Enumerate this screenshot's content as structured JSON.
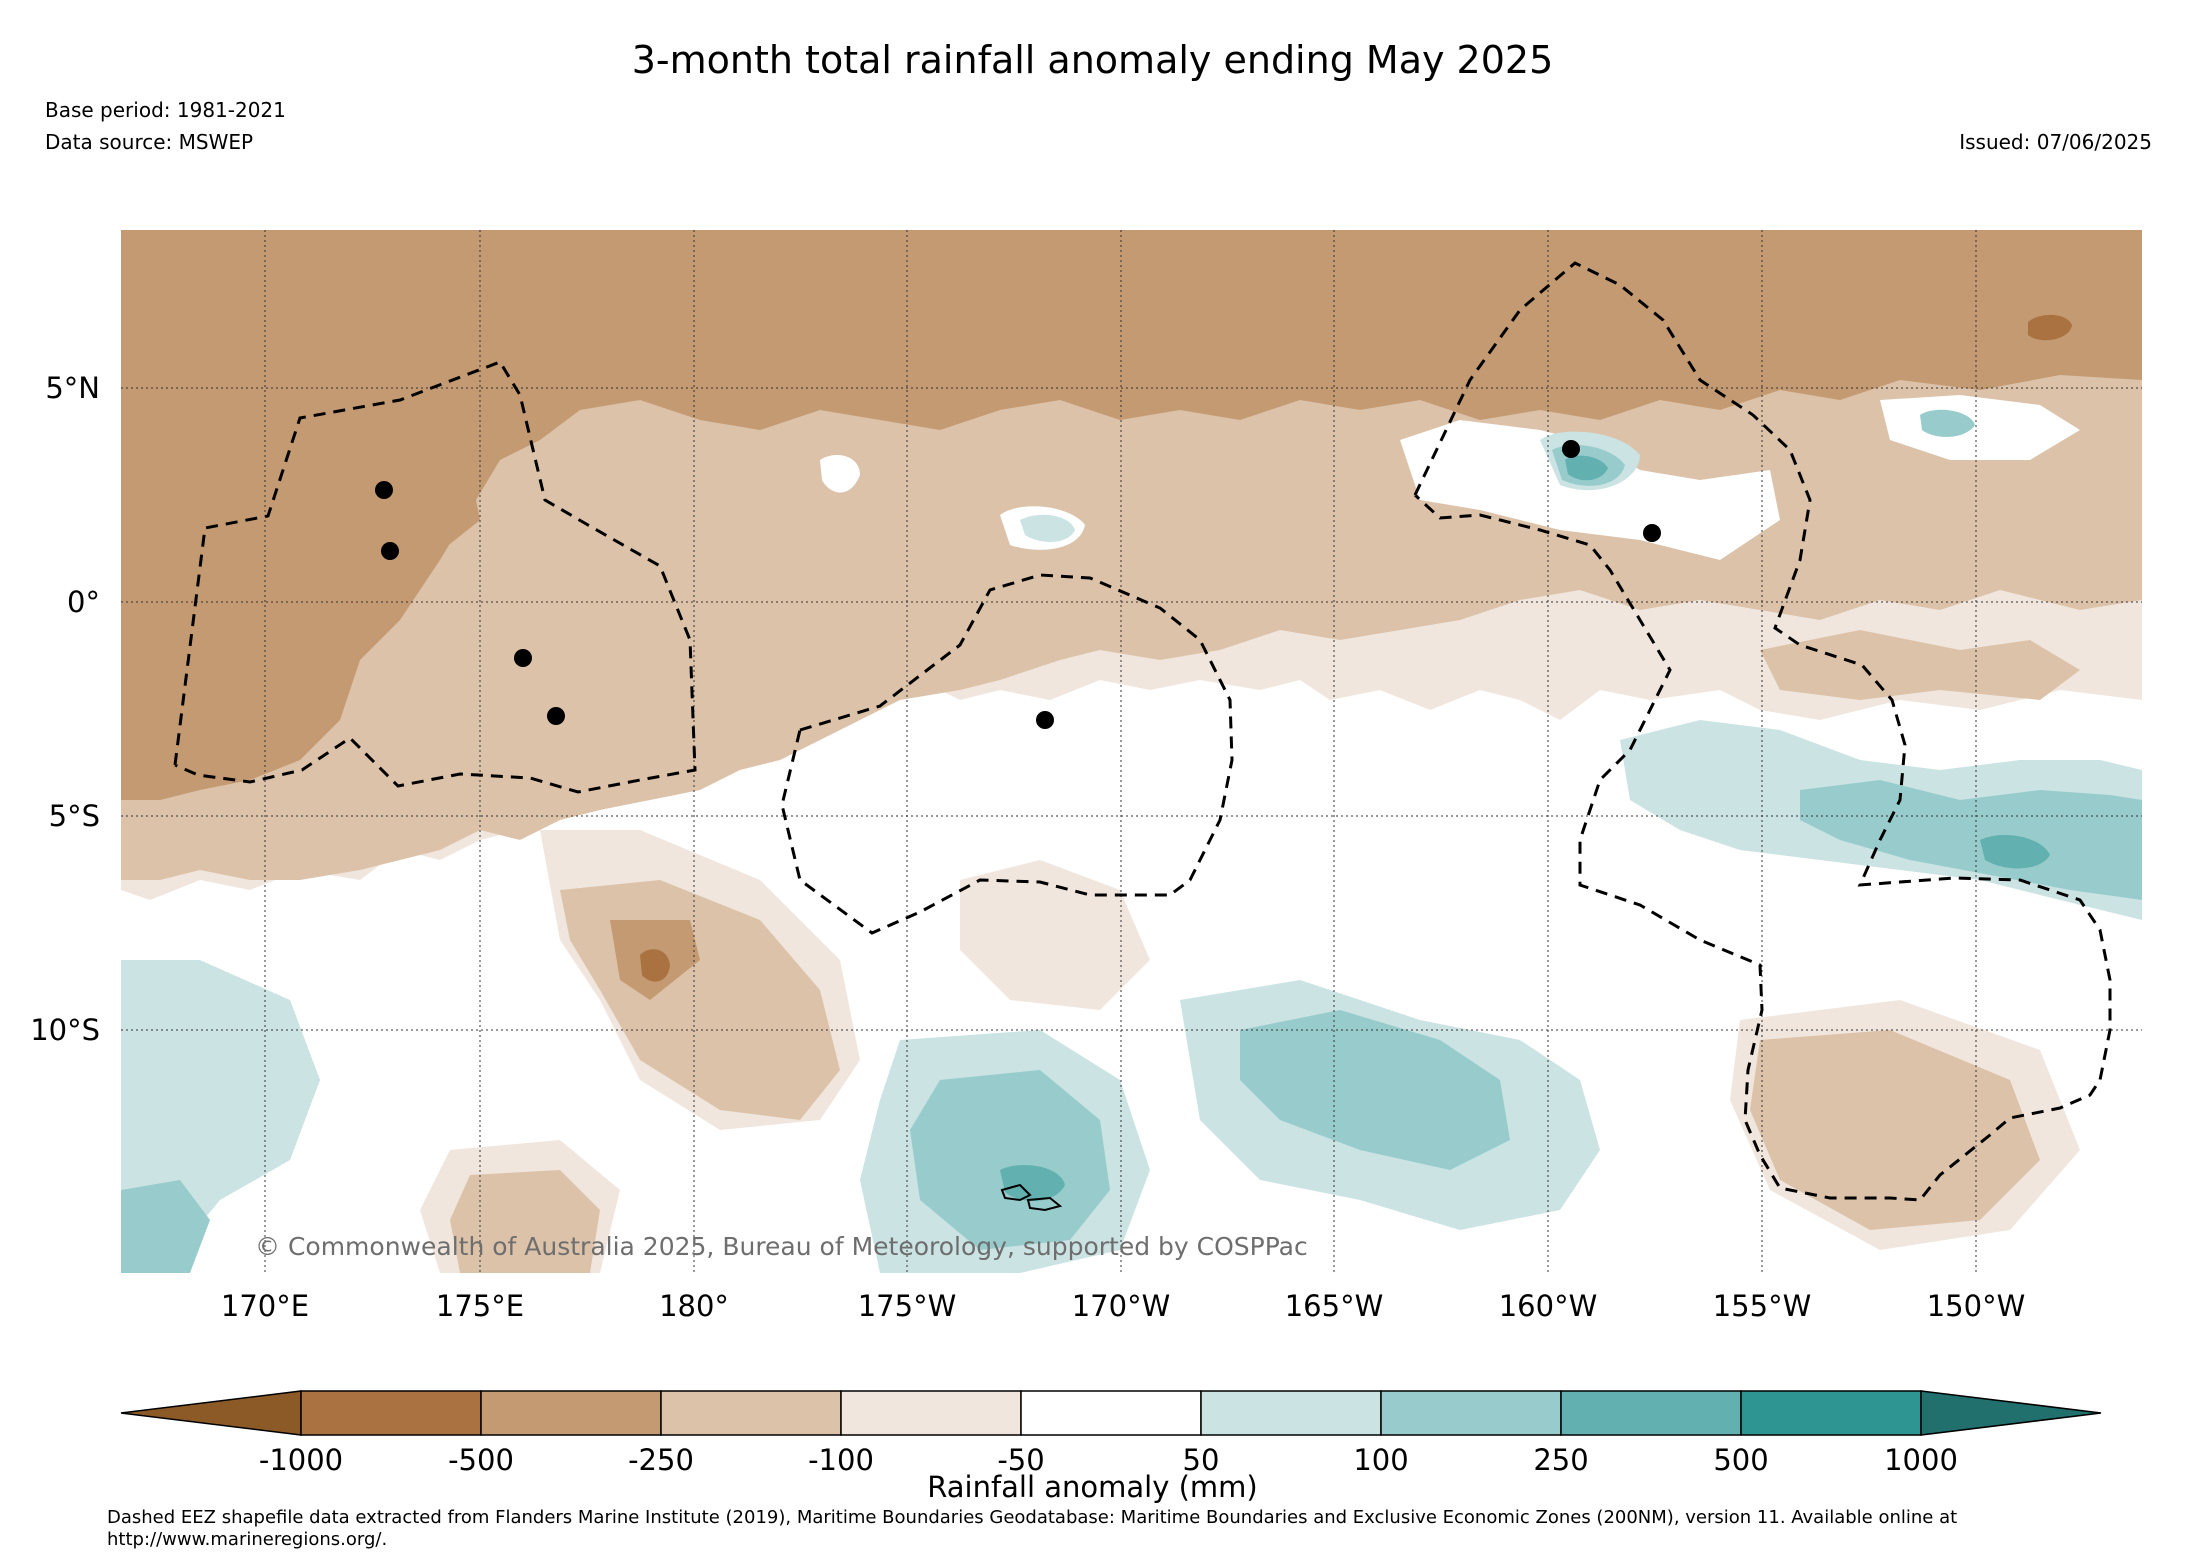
{
  "header": {
    "title": "3-month total rainfall anomaly ending May 2025",
    "base_period": "Base period: 1981-2021",
    "data_source": "Data source: MSWEP",
    "issued": "Issued: 07/06/2025"
  },
  "map": {
    "lat_labels": [
      "5°N",
      "0°",
      "5°S",
      "10°S"
    ],
    "lon_labels": [
      "170°E",
      "175°E",
      "180°",
      "175°W",
      "170°W",
      "165°W",
      "160°W",
      "155°W",
      "150°W"
    ],
    "copyright": "© Commonwealth of Australia 2025, Bureau of Meteorology, supported by COSPPac"
  },
  "colorbar": {
    "title": "Rainfall anomaly (mm)",
    "ticks": [
      "-1000",
      "-500",
      "-250",
      "-100",
      "-50",
      "50",
      "100",
      "250",
      "500",
      "1000"
    ],
    "colors": [
      "#8c5a27",
      "#a97240",
      "#c39a71",
      "#dcc2a9",
      "#f0e6dd",
      "#ffffff",
      "#cbe3e3",
      "#98cccc",
      "#62b0b0",
      "#2e9592",
      "#21706d"
    ]
  },
  "footnote": "Dashed EEZ shapefile data extracted from Flanders Marine Institute (2019), Maritime Boundaries Geodatabase: Maritime Boundaries and Exclusive Economic Zones (200NM), version 11. Available online at http://www.marineregions.org/."
}
